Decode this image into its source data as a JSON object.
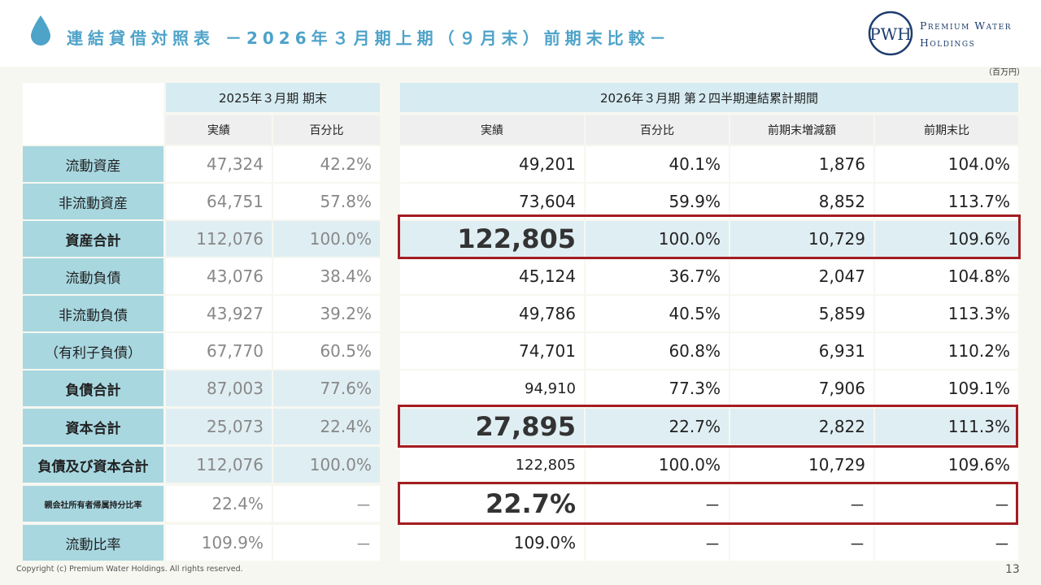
{
  "header": {
    "title": "連結貸借対照表 －2026年３月期上期（９月末）前期末比較－",
    "logo_line1": "Premium Water",
    "logo_line2": "Holdings",
    "logo_mark": "PWH",
    "unit": "（百万円）"
  },
  "table": {
    "prev_group": "2025年３月期 期末",
    "curr_group": "2026年３月期 第２四半期連結累計期間",
    "sub_headers": [
      "実績",
      "百分比",
      "実績",
      "百分比",
      "前期末増減額",
      "前期末比"
    ],
    "rows": [
      {
        "label": "流動資産",
        "prev": [
          "47,324",
          "42.2%"
        ],
        "curr": [
          "49,201",
          "40.1%",
          "1,876",
          "104.0%"
        ]
      },
      {
        "label": "非流動資産",
        "prev": [
          "64,751",
          "57.8%"
        ],
        "curr": [
          "73,604",
          "59.9%",
          "8,852",
          "113.7%"
        ]
      },
      {
        "label": "資産合計",
        "prev": [
          "112,076",
          "100.0%"
        ],
        "curr": [
          "122,805",
          "100.0%",
          "10,729",
          "109.6%"
        ]
      },
      {
        "label": "流動負債",
        "prev": [
          "43,076",
          "38.4%"
        ],
        "curr": [
          "45,124",
          "36.7%",
          "2,047",
          "104.8%"
        ]
      },
      {
        "label": "非流動負債",
        "prev": [
          "43,927",
          "39.2%"
        ],
        "curr": [
          "49,786",
          "40.5%",
          "5,859",
          "113.3%"
        ]
      },
      {
        "label": "（有利子負債）",
        "prev": [
          "67,770",
          "60.5%"
        ],
        "curr": [
          "74,701",
          "60.8%",
          "6,931",
          "110.2%"
        ]
      },
      {
        "label": "負債合計",
        "prev": [
          "87,003",
          "77.6%"
        ],
        "curr": [
          "94,910",
          "77.3%",
          "7,906",
          "109.1%"
        ]
      },
      {
        "label": "資本合計",
        "prev": [
          "25,073",
          "22.4%"
        ],
        "curr": [
          "27,895",
          "22.7%",
          "2,822",
          "111.3%"
        ]
      },
      {
        "label": "負債及び資本合計",
        "prev": [
          "112,076",
          "100.0%"
        ],
        "curr": [
          "122,805",
          "100.0%",
          "10,729",
          "109.6%"
        ]
      },
      {
        "label": "親会社所有者帰属持分比率",
        "prev": [
          "22.4%",
          "－"
        ],
        "curr": [
          "22.7%",
          "－",
          "－",
          "－"
        ]
      },
      {
        "label": "流動比率",
        "prev": [
          "109.9%",
          "－"
        ],
        "curr": [
          "109.0%",
          "－",
          "－",
          "－"
        ]
      }
    ]
  },
  "footer": {
    "copyright": "Copyright (c) Premium Water Holdings. All rights reserved.",
    "page_number": "13"
  },
  "colors": {
    "title": "#4ea3c9",
    "header_bg": "#d6ebf2",
    "label_bg": "#a8d7e0",
    "highlight_frame": "#a31d22"
  }
}
